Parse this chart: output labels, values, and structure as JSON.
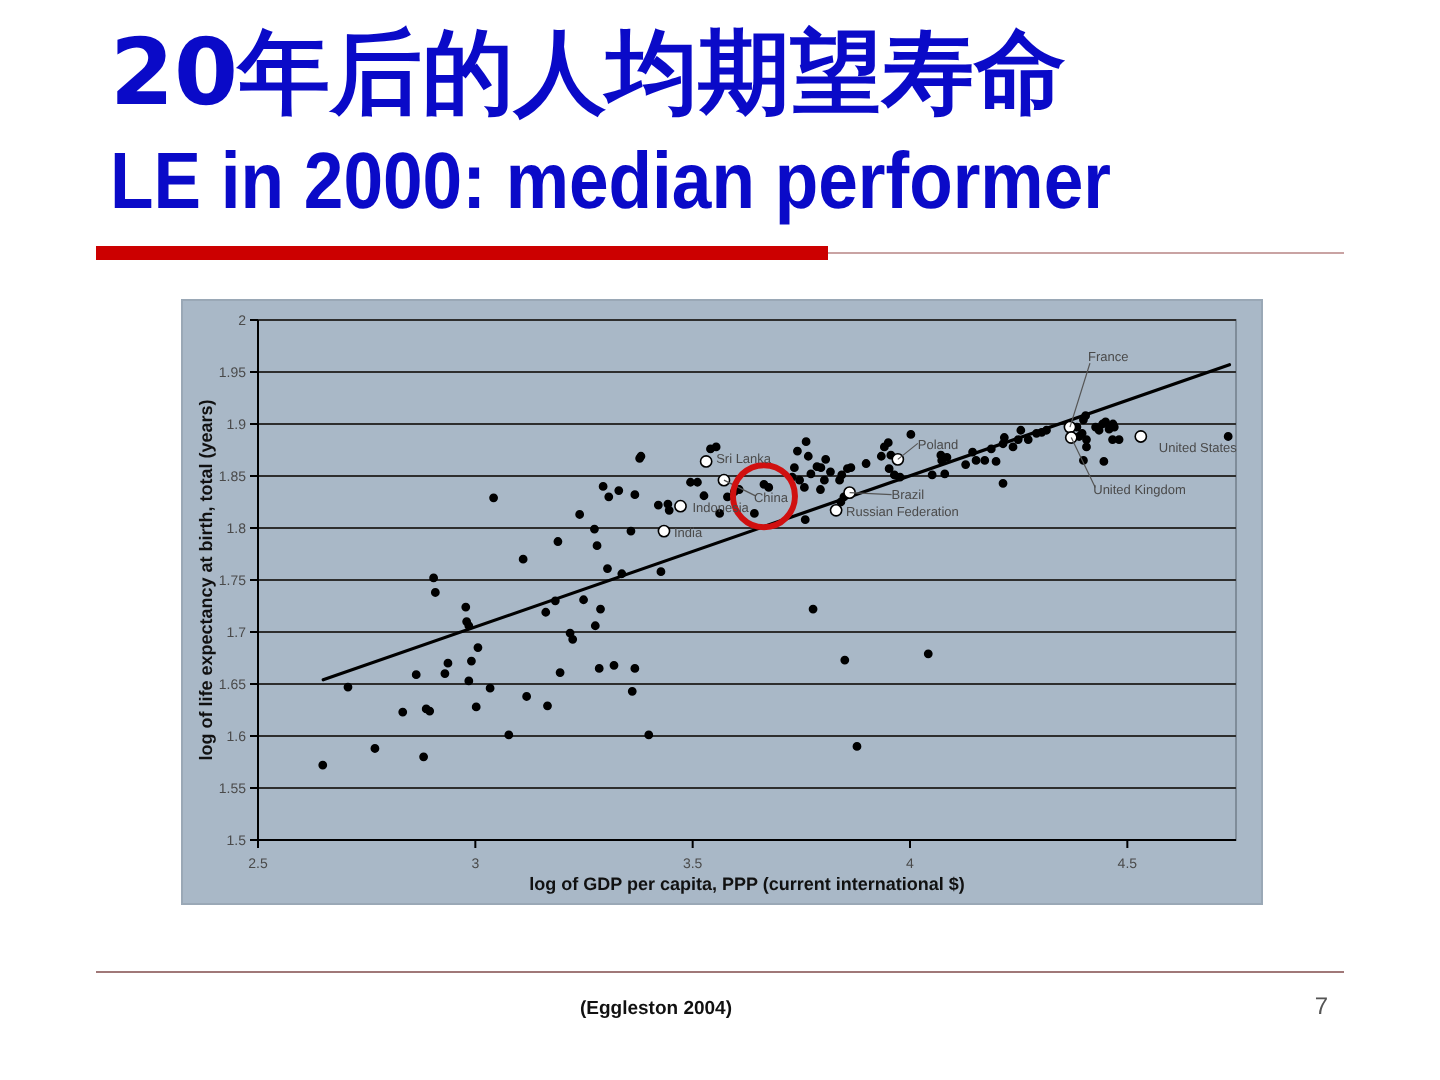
{
  "chart_data": {
    "type": "scatter",
    "title": "20年后的人均期望寿命",
    "subtitle": "LE in 2000: median performer",
    "xlabel": "log of GDP per capita, PPP (current international $)",
    "ylabel": "log of life expectancy at birth, total (years)",
    "xlim": [
      2.5,
      4.75
    ],
    "xticks": [
      2.5,
      3,
      3.5,
      4,
      4.5
    ],
    "ylim": [
      1.5,
      2
    ],
    "yticks": [
      1.5,
      1.55,
      1.6,
      1.65,
      1.7,
      1.75,
      1.8,
      1.85,
      1.9,
      1.95,
      2
    ],
    "grid": "y",
    "marker": "circle",
    "series": [
      {
        "color": "#000000",
        "x": [
          2.649,
          2.707,
          2.769,
          2.833,
          2.864,
          2.881,
          2.887,
          2.895,
          2.904,
          2.908,
          2.93,
          2.937,
          2.978,
          2.98,
          2.985,
          2.985,
          2.991,
          3.002,
          3.006,
          3.034,
          3.042,
          3.077,
          3.11,
          3.118,
          3.162,
          3.166,
          3.184,
          3.19,
          3.195,
          3.218,
          3.224,
          3.24,
          3.249,
          3.274,
          3.276,
          3.28,
          3.285,
          3.288,
          3.294,
          3.304,
          3.307,
          3.33,
          3.367,
          3.378,
          3.381,
          3.358,
          3.319,
          3.367,
          3.361,
          3.399,
          3.337,
          3.427,
          3.421,
          3.446,
          3.443,
          3.495,
          3.511,
          3.526,
          3.541,
          3.554,
          3.562,
          3.58,
          3.596,
          3.607,
          3.642,
          3.664,
          3.675,
          3.734,
          3.741,
          3.761,
          3.766,
          3.746,
          3.757,
          3.729,
          3.772,
          3.786,
          3.795,
          3.803,
          3.794,
          3.759,
          3.777,
          3.806,
          3.817,
          3.838,
          3.843,
          3.856,
          3.864,
          3.848,
          3.841,
          3.85,
          3.878,
          3.899,
          3.934,
          3.941,
          3.95,
          3.956,
          3.952,
          3.964,
          3.977,
          4.002,
          4.042,
          4.051,
          4.071,
          4.073,
          4.08,
          4.085,
          4.128,
          4.144,
          4.152,
          4.172,
          4.187,
          4.198,
          4.214,
          4.214,
          4.217,
          4.237,
          4.249,
          4.255,
          4.272,
          4.291,
          4.303,
          4.314,
          4.384,
          4.389,
          4.399,
          4.404,
          4.396,
          4.406,
          4.406,
          4.399,
          4.427,
          4.435,
          4.443,
          4.45,
          4.458,
          4.467,
          4.47,
          4.466,
          4.481,
          4.446,
          4.732
        ],
        "values": [
          1.572,
          1.647,
          1.588,
          1.623,
          1.659,
          1.58,
          1.626,
          1.624,
          1.752,
          1.738,
          1.66,
          1.67,
          1.724,
          1.71,
          1.706,
          1.653,
          1.672,
          1.628,
          1.685,
          1.646,
          1.829,
          1.601,
          1.77,
          1.638,
          1.719,
          1.629,
          1.73,
          1.787,
          1.661,
          1.699,
          1.693,
          1.813,
          1.731,
          1.799,
          1.706,
          1.783,
          1.665,
          1.722,
          1.84,
          1.761,
          1.83,
          1.836,
          1.832,
          1.867,
          1.869,
          1.797,
          1.668,
          1.665,
          1.643,
          1.601,
          1.756,
          1.758,
          1.822,
          1.817,
          1.823,
          1.844,
          1.844,
          1.831,
          1.876,
          1.878,
          1.814,
          1.83,
          1.835,
          1.837,
          1.814,
          1.842,
          1.839,
          1.858,
          1.874,
          1.883,
          1.869,
          1.846,
          1.839,
          1.849,
          1.852,
          1.859,
          1.858,
          1.846,
          1.837,
          1.808,
          1.722,
          1.866,
          1.854,
          1.846,
          1.851,
          1.857,
          1.858,
          1.83,
          1.825,
          1.673,
          1.59,
          1.862,
          1.869,
          1.878,
          1.882,
          1.87,
          1.857,
          1.851,
          1.849,
          1.89,
          1.679,
          1.851,
          1.87,
          1.865,
          1.852,
          1.868,
          1.861,
          1.873,
          1.865,
          1.865,
          1.876,
          1.864,
          1.843,
          1.881,
          1.887,
          1.878,
          1.885,
          1.894,
          1.885,
          1.891,
          1.892,
          1.894,
          1.897,
          1.888,
          1.904,
          1.908,
          1.891,
          1.885,
          1.878,
          1.865,
          1.897,
          1.894,
          1.9,
          1.902,
          1.895,
          1.9,
          1.897,
          1.885,
          1.885,
          1.864,
          1.888
        ]
      },
      {
        "type": "line",
        "color": "#000000",
        "marker": "none",
        "line_style": "solid",
        "x": [
          2.65,
          4.735
        ],
        "values": [
          1.654,
          1.957
        ]
      },
      {
        "color": "#ffffff",
        "x": [
          4.368,
          4.371,
          4.531,
          3.972,
          3.861,
          3.83,
          3.572,
          3.531,
          3.472,
          3.434
        ],
        "values": [
          1.897,
          1.887,
          1.888,
          1.866,
          1.834,
          1.817,
          1.846,
          1.864,
          1.821,
          1.797
        ]
      }
    ],
    "annotations": [
      {
        "text": "France",
        "x": 4.368,
        "y": 1.897
      },
      {
        "text": "United Kingdom",
        "x": 4.371,
        "y": 1.887
      },
      {
        "text": "United States",
        "x": 4.531,
        "y": 1.888
      },
      {
        "text": "Poland",
        "x": 3.972,
        "y": 1.866
      },
      {
        "text": "Brazil",
        "x": 3.861,
        "y": 1.834
      },
      {
        "text": "Russian Federation",
        "x": 3.83,
        "y": 1.817
      },
      {
        "text": "China",
        "x": 3.572,
        "y": 1.846
      },
      {
        "text": "Sri Lanka",
        "x": 3.531,
        "y": 1.864
      },
      {
        "text": "Indonesia",
        "x": 3.472,
        "y": 1.821
      },
      {
        "text": "India",
        "x": 3.434,
        "y": 1.797
      },
      "(Eggleston 2004)",
      "7"
    ]
  }
}
